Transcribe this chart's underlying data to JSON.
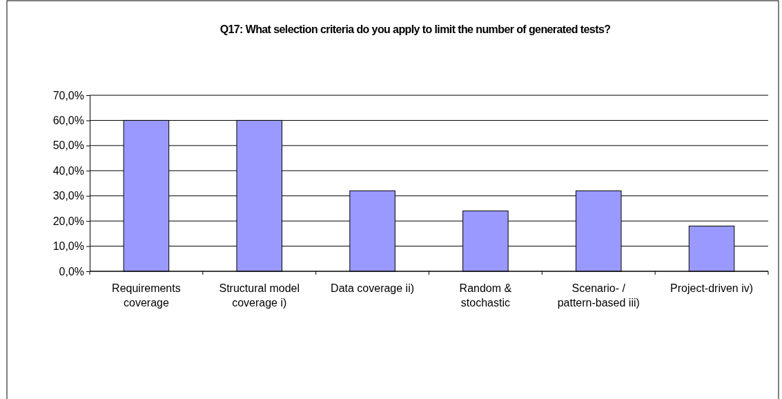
{
  "chart_data": {
    "type": "bar",
    "title": "Q17: What selection criteria do you apply to limit the number of generated tests?",
    "categories": [
      "Requirements coverage",
      "Structural model coverage i)",
      "Data coverage ii)",
      "Random & stochastic",
      "Scenario- / pattern-based iii)",
      "Project-driven iv)"
    ],
    "values": [
      60,
      60,
      32,
      24,
      32,
      18
    ],
    "color": "#9999ff",
    "ylim": [
      0,
      70
    ],
    "yticks": [
      {
        "value": 0,
        "label": "0,0%"
      },
      {
        "value": 10,
        "label": "10,0%"
      },
      {
        "value": 20,
        "label": "20,0%"
      },
      {
        "value": 30,
        "label": "30,0%"
      },
      {
        "value": 40,
        "label": "40,0%"
      },
      {
        "value": 50,
        "label": "50,0%"
      },
      {
        "value": 60,
        "label": "60,0%"
      },
      {
        "value": 70,
        "label": "70,0%"
      }
    ],
    "grid": "y"
  }
}
